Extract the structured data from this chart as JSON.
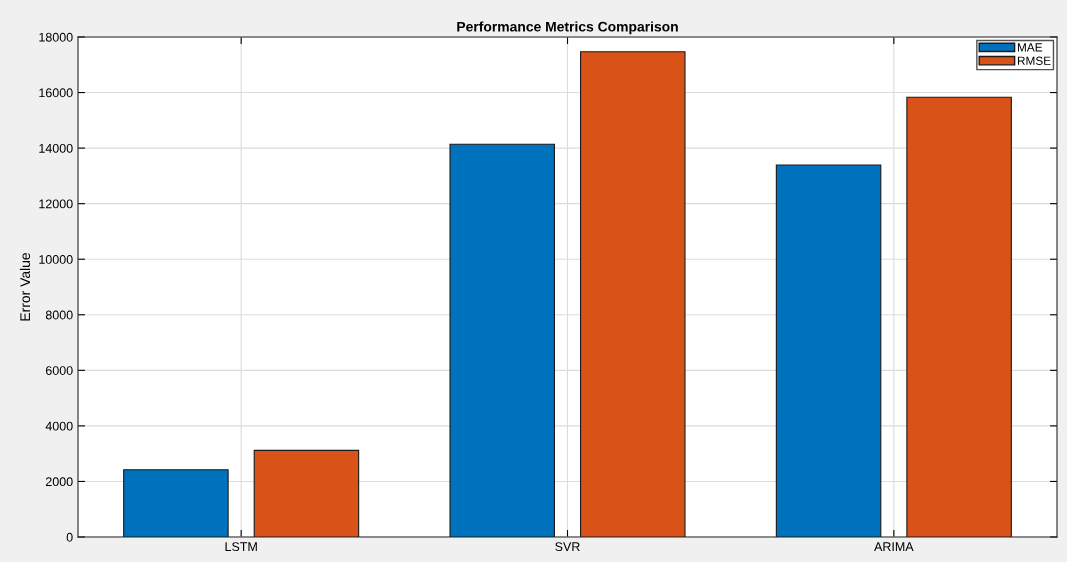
{
  "chart_data": {
    "type": "bar",
    "title": "Performance Metrics Comparison",
    "ylabel": "Error Value",
    "categories": [
      "LSTM",
      "SVR",
      "ARIMA"
    ],
    "series": [
      {
        "name": "MAE",
        "color": "#0072bd",
        "values": [
          2420,
          14140,
          13390
        ]
      },
      {
        "name": "RMSE",
        "color": "#d95319",
        "values": [
          3120,
          17470,
          15830
        ]
      }
    ],
    "ylim": [
      0,
      18000
    ],
    "yticks": [
      0,
      2000,
      4000,
      6000,
      8000,
      10000,
      12000,
      14000,
      16000,
      18000
    ],
    "grid": true,
    "legend": "top right"
  }
}
